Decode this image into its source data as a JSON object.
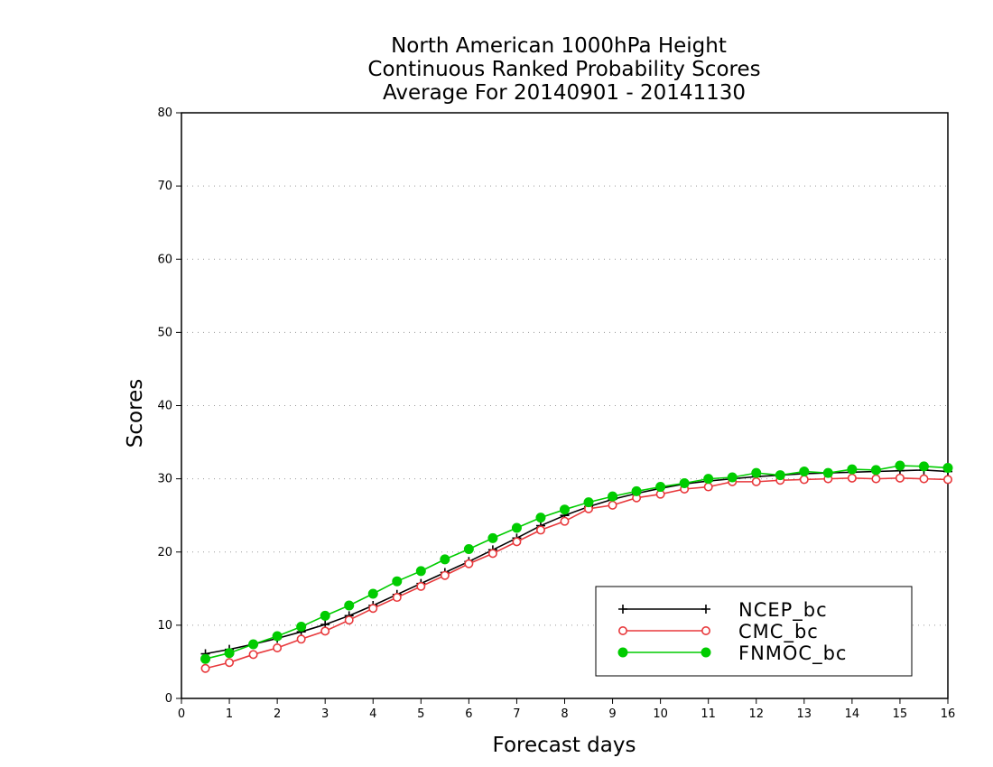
{
  "chart_data": {
    "type": "line",
    "title_lines": [
      "North American 1000hPa Height",
      "Continuous Ranked Probability Scores",
      "Average For 20140901 - 20141130"
    ],
    "xlabel": "Forecast days",
    "ylabel": "Scores",
    "xlim": [
      0,
      16
    ],
    "ylim": [
      0,
      80
    ],
    "xticks": [
      "0",
      "1",
      "2",
      "3",
      "4",
      "5",
      "6",
      "7",
      "8",
      "9",
      "10",
      "11",
      "12",
      "13",
      "14",
      "15",
      "16"
    ],
    "yticks": [
      "0",
      "10",
      "20",
      "30",
      "40",
      "50",
      "60",
      "70",
      "80"
    ],
    "grid": "horizontal-dotted",
    "legend_position": "bottom-right",
    "x": [
      0.5,
      1,
      1.5,
      2,
      2.5,
      3,
      3.5,
      4,
      4.5,
      5,
      5.5,
      6,
      6.5,
      7,
      7.5,
      8,
      8.5,
      9,
      9.5,
      10,
      10.5,
      11,
      11.5,
      12,
      12.5,
      13,
      13.5,
      14,
      14.5,
      15,
      15.5,
      16
    ],
    "series": [
      {
        "name": "NCEP_bc",
        "color": "#000000",
        "marker": "plus",
        "values": [
          6.1,
          6.7,
          7.4,
          8.2,
          9.1,
          10.1,
          11.3,
          12.7,
          14.2,
          15.7,
          17.2,
          18.7,
          20.3,
          21.9,
          23.6,
          25.0,
          26.2,
          27.2,
          28.0,
          28.7,
          29.3,
          29.7,
          30.0,
          30.3,
          30.5,
          30.7,
          30.8,
          30.9,
          31.0,
          31.1,
          31.2,
          31.0
        ]
      },
      {
        "name": "CMC_bc",
        "color": "#e8393c",
        "marker": "open-circle",
        "values": [
          4.1,
          4.9,
          6.0,
          6.9,
          8.1,
          9.2,
          10.7,
          12.3,
          13.8,
          15.3,
          16.8,
          18.4,
          19.8,
          21.4,
          23.0,
          24.2,
          25.9,
          26.4,
          27.4,
          27.9,
          28.6,
          28.9,
          29.6,
          29.6,
          29.8,
          29.9,
          30.0,
          30.1,
          30.0,
          30.1,
          30.0,
          29.9
        ]
      },
      {
        "name": "FNMOC_bc",
        "color": "#00cc00",
        "marker": "filled-circle",
        "values": [
          5.4,
          6.2,
          7.4,
          8.5,
          9.8,
          11.3,
          12.7,
          14.3,
          16.0,
          17.4,
          19.0,
          20.4,
          21.9,
          23.3,
          24.7,
          25.8,
          26.8,
          27.6,
          28.3,
          28.9,
          29.4,
          30.0,
          30.2,
          30.8,
          30.5,
          31.0,
          30.8,
          31.3,
          31.2,
          31.8,
          31.7,
          31.5
        ]
      }
    ]
  }
}
